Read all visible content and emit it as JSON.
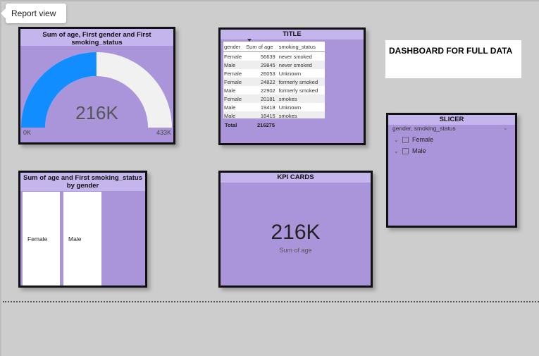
{
  "tooltip": {
    "text": "Report view"
  },
  "gauge": {
    "title": "Sum of age, First gender and First smoking_status",
    "value": 216275,
    "max_value": 433000,
    "display_value": "216K",
    "min_label": "0K",
    "max_label": "433K",
    "fill_color": "#118dff",
    "track_color": "#f1f1f1"
  },
  "table_card": {
    "title": "TITLE",
    "columns": [
      "gender",
      "Sum of age",
      "smoking_status"
    ],
    "rows": [
      [
        "Female",
        "56639",
        "never smoked"
      ],
      [
        "Male",
        "29845",
        "never smoked"
      ],
      [
        "Female",
        "26053",
        "Unknown"
      ],
      [
        "Female",
        "24822",
        "formerly smoked"
      ],
      [
        "Male",
        "22902",
        "formerly smoked"
      ],
      [
        "Female",
        "20181",
        "smokes"
      ],
      [
        "Male",
        "19418",
        "Unknown"
      ],
      [
        "Male",
        "16415",
        "smokes"
      ]
    ],
    "total_label": "Total",
    "total_value": "216275"
  },
  "dashboard_title": "DASHBOARD FOR FULL DATA",
  "slicer": {
    "title": "SLICER",
    "header": "gender, smoking_status",
    "items": [
      "Female",
      "Male"
    ]
  },
  "bar_chart": {
    "title": "Sum of age and First smoking_status by gender",
    "categories": [
      "Female",
      "Male"
    ]
  },
  "kpi": {
    "title": "KPI CARDS",
    "value": "216K",
    "label": "Sum of age"
  },
  "colors": {
    "canvas": "#cdcdcd",
    "card_bg": "#aa95da",
    "card_header": "#c4b5ec",
    "accent_blue": "#118dff"
  }
}
